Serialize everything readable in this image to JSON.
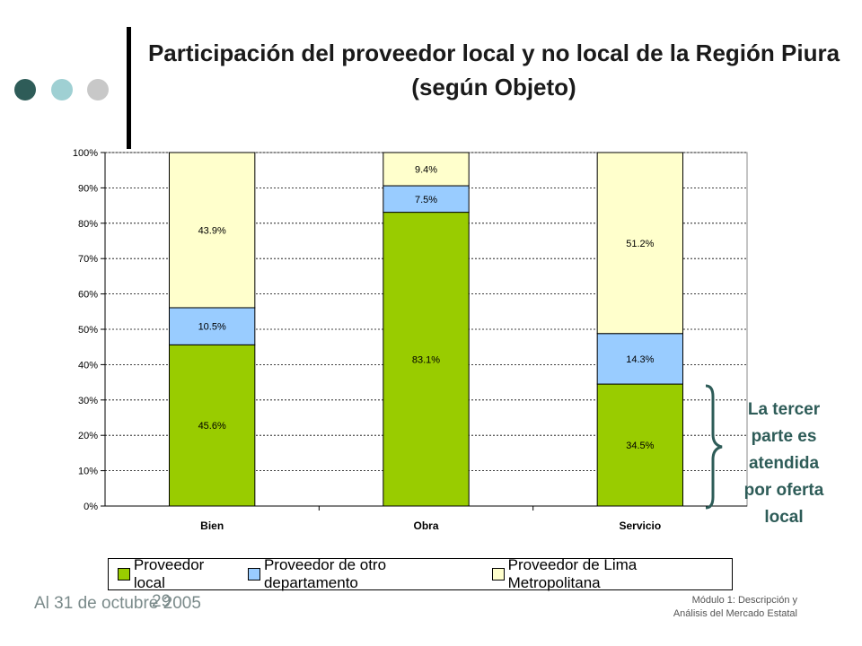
{
  "slide": {
    "title": "Participación del proveedor local y no local de la Región Piura (según Objeto)",
    "annotation": "La tercer parte es atendida por oferta local",
    "footer_left": "Al 31 de octubre 2005",
    "page_number": "29",
    "footer_right_line1": "Módulo 1: Descripción y",
    "footer_right_line2": "Análisis del Mercado Estatal",
    "dot_colors": [
      "#2e5c58",
      "#9fd0d3",
      "#c8c8c8"
    ]
  },
  "chart_data": {
    "type": "bar",
    "stacked": true,
    "categories": [
      "Bien",
      "Obra",
      "Servicio"
    ],
    "series": [
      {
        "name": "Proveedor local",
        "values": [
          45.6,
          83.1,
          34.5
        ],
        "labels": [
          "45.6%",
          "83.1%",
          "34.5%"
        ],
        "color": "#99cc00"
      },
      {
        "name": "Proveedor de otro departamento",
        "values": [
          10.5,
          7.5,
          14.3
        ],
        "labels": [
          "10.5%",
          "7.5%",
          "14.3%"
        ],
        "color": "#99ccff"
      },
      {
        "name": "Proveedor de Lima Metropolitana",
        "values": [
          43.9,
          9.4,
          51.2
        ],
        "labels": [
          "43.9%",
          "9.4%",
          "51.2%"
        ],
        "color": "#ffffcc"
      }
    ],
    "yticks": [
      "0%",
      "10%",
      "20%",
      "30%",
      "40%",
      "50%",
      "60%",
      "70%",
      "80%",
      "90%",
      "100%"
    ],
    "ylim": [
      0,
      100
    ],
    "grid": true,
    "legend_position": "bottom"
  }
}
